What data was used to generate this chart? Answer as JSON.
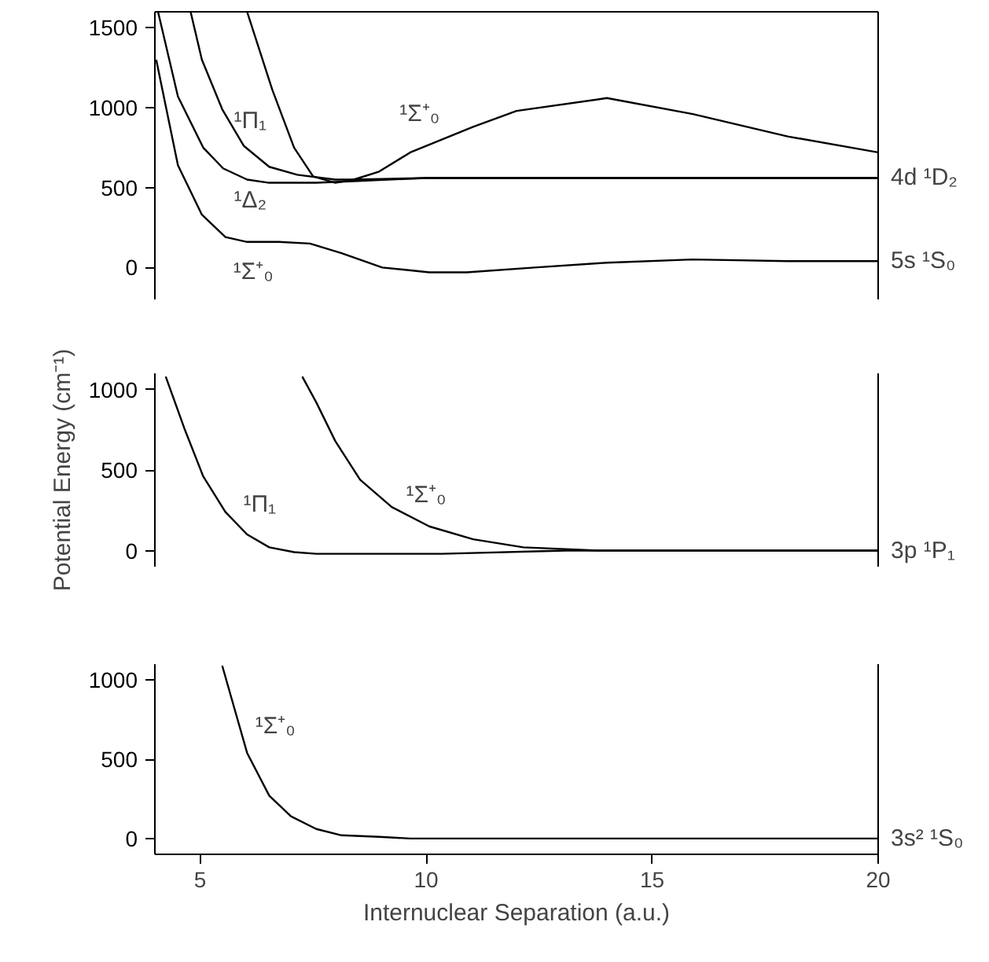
{
  "chart_data": [
    {
      "type": "line",
      "xlim": [
        4,
        20
      ],
      "ylim": [
        -200,
        1600
      ],
      "yticks": [
        0,
        500,
        1000,
        1500
      ],
      "tick_labels": "y",
      "grid": false,
      "series": [
        {
          "name": "¹Σ⁺₀",
          "color": "#000000",
          "x": [
            4.03,
            4.51,
            5.04,
            5.56,
            6.04,
            6.74,
            7.43,
            8.13,
            9.03,
            10.07,
            10.9,
            12.4,
            14.0,
            15.9,
            18,
            20
          ],
          "values": [
            1300,
            640,
            330,
            190,
            160,
            160,
            150,
            90,
            0,
            -30,
            -30,
            0,
            30,
            50,
            40,
            40
          ]
        },
        {
          "name": "¹Δ₂",
          "color": "#000000",
          "x": [
            4.07,
            4.51,
            5.07,
            5.51,
            6.04,
            6.53,
            7.57,
            8.4,
            10,
            14,
            20
          ],
          "values": [
            1600,
            1070,
            750,
            620,
            550,
            530,
            530,
            540,
            560,
            560,
            560
          ]
        },
        {
          "name": "¹Π₁",
          "color": "#000000",
          "x": [
            4.79,
            5.04,
            5.49,
            5.97,
            6.53,
            7.15,
            7.99,
            8.4,
            10,
            20
          ],
          "values": [
            1600,
            1300,
            990,
            760,
            630,
            580,
            550,
            550,
            560,
            560
          ]
        },
        {
          "name": "¹Σ⁺₀",
          "color": "#000000",
          "x": [
            6.04,
            6.6,
            7.08,
            7.5,
            7.99,
            8.4,
            8.96,
            9.65,
            11.04,
            12.0,
            14.0,
            15.9,
            18,
            20
          ],
          "values": [
            1600,
            1110,
            750,
            570,
            530,
            550,
            600,
            720,
            880,
            980,
            1060,
            960,
            820,
            720
          ]
        }
      ],
      "annotations": [
        "4d ¹D₂",
        "5s ¹S₀"
      ]
    },
    {
      "type": "line",
      "xlim": [
        4,
        20
      ],
      "ylim": [
        -100,
        1100
      ],
      "yticks": [
        0,
        500,
        1000
      ],
      "tick_labels": "y",
      "grid": false,
      "ylabel": "Potential Energy (cm⁻¹)",
      "series": [
        {
          "name": "¹Π₁",
          "color": "#000000",
          "x": [
            4.24,
            4.65,
            5.07,
            5.56,
            6.04,
            6.53,
            7.08,
            7.57,
            10.35,
            13.1,
            20
          ],
          "values": [
            1080,
            760,
            460,
            240,
            100,
            20,
            -10,
            -20,
            -20,
            0,
            0
          ]
        },
        {
          "name": "¹Σ⁺₀",
          "color": "#000000",
          "x": [
            7.26,
            7.57,
            7.99,
            8.54,
            9.24,
            10.07,
            11.04,
            12.15,
            13.8,
            20
          ],
          "values": [
            1080,
            920,
            680,
            440,
            270,
            150,
            70,
            20,
            0,
            0
          ]
        }
      ],
      "annotations": [
        "3p ¹P₁"
      ]
    },
    {
      "type": "line",
      "xlim": [
        4,
        20
      ],
      "ylim": [
        -100,
        1100
      ],
      "xticks": [
        5,
        10,
        15,
        20
      ],
      "yticks": [
        0,
        500,
        1000
      ],
      "grid": false,
      "xlabel": "Internuclear Separation (a.u.)",
      "series": [
        {
          "name": "¹Σ⁺₀",
          "color": "#000000",
          "x": [
            5.49,
            5.76,
            6.04,
            6.53,
            7.01,
            7.57,
            8.13,
            8.96,
            9.65,
            20
          ],
          "values": [
            1090,
            820,
            540,
            270,
            140,
            60,
            20,
            10,
            0,
            0
          ]
        }
      ],
      "annotations": [
        "3s² ¹S₀"
      ]
    }
  ]
}
